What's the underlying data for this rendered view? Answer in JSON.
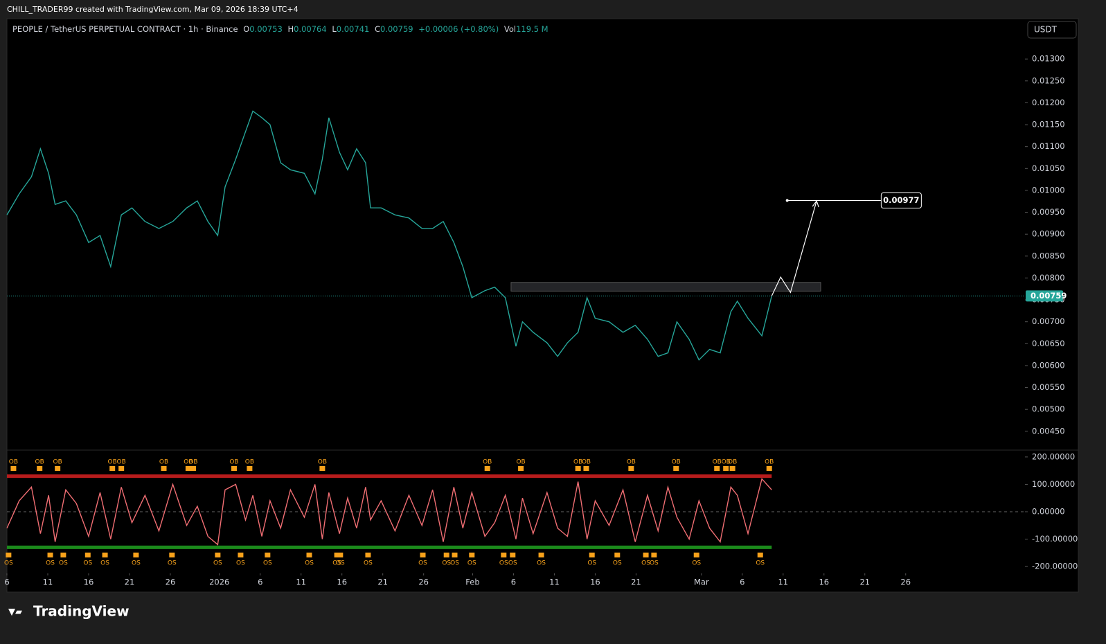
{
  "header": {
    "credit": "CHILL_TRADER99 created with TradingView.com, Mar 09, 2026 18:39 UTC+4",
    "symbol": "PEOPLE / TetherUS PERPETUAL CONTRACT · 1h · Binance",
    "o_label": "O",
    "o": "0.00753",
    "h_label": "H",
    "h": "0.00764",
    "l_label": "L",
    "l": "0.00741",
    "c_label": "C",
    "c": "0.00759",
    "change": "+0.00006 (+0.80%)",
    "vol_label": "Vol",
    "vol": "119.5 M",
    "currency": "USDT",
    "brand": "TradingView"
  },
  "chart_data": [
    {
      "type": "line",
      "name": "price",
      "x": [
        0,
        1.5,
        3,
        4.1,
        5.1,
        5.9,
        7.2,
        8.5,
        10,
        11.4,
        12.7,
        14,
        15.3,
        16.9,
        18.6,
        20.3,
        22,
        23.3,
        24.6,
        25.8,
        26.7,
        28,
        29.2,
        30.1,
        31.2,
        32.2,
        33.5,
        34.7,
        36.4,
        37.7,
        38.6,
        39.4,
        40.7,
        41.7,
        42.8,
        43.9,
        44.5,
        45.8,
        47.5,
        49.2,
        50.8,
        52.1,
        53.4,
        54.7,
        55.8,
        56.9,
        58.5,
        59.7,
        61,
        62.3,
        63.1,
        64.4,
        66.1,
        67.4,
        68.6,
        69.9,
        71,
        72,
        73.7,
        75.4,
        76.9,
        78.4,
        79.7,
        80.9,
        82,
        83.5,
        84.7,
        86,
        87.3,
        88.6,
        89.4,
        90.7,
        92.4,
        93.6
      ],
      "series": [
        {
          "name": "PEOPLE",
          "color": "#26a69a",
          "values": [
            0.00944,
            0.00992,
            0.01031,
            0.01095,
            0.01039,
            0.00968,
            0.00976,
            0.00944,
            0.00881,
            0.00897,
            0.00826,
            0.00944,
            0.0096,
            0.00929,
            0.00913,
            0.00929,
            0.0096,
            0.00976,
            0.00929,
            0.00897,
            0.01008,
            0.01071,
            0.01134,
            0.01181,
            0.01166,
            0.0115,
            0.01063,
            0.01047,
            0.01039,
            0.00992,
            0.01071,
            0.01166,
            0.01087,
            0.01047,
            0.01095,
            0.01063,
            0.0096,
            0.0096,
            0.00944,
            0.00937,
            0.00913,
            0.00913,
            0.00929,
            0.00881,
            0.00826,
            0.00755,
            0.00771,
            0.00779,
            0.00755,
            0.00644,
            0.007,
            0.00676,
            0.00652,
            0.00621,
            0.00652,
            0.00676,
            0.00755,
            0.00708,
            0.007,
            0.00676,
            0.00692,
            0.0066,
            0.00621,
            0.00629,
            0.007,
            0.0066,
            0.00613,
            0.00637,
            0.00629,
            0.00723,
            0.00747,
            0.00708,
            0.00668,
            0.00759
          ]
        }
      ],
      "xlim": [
        0,
        124.6
      ],
      "ylim": [
        0.00407,
        0.01392
      ],
      "yticks": [
        {
          "value": 0.013,
          "label": "0.01300"
        },
        {
          "value": 0.0125,
          "label": "0.01250"
        },
        {
          "value": 0.012,
          "label": "0.01200"
        },
        {
          "value": 0.0115,
          "label": "0.01150"
        },
        {
          "value": 0.011,
          "label": "0.01100"
        },
        {
          "value": 0.0105,
          "label": "0.01050"
        },
        {
          "value": 0.01,
          "label": "0.01000"
        },
        {
          "value": 0.0095,
          "label": "0.00950"
        },
        {
          "value": 0.009,
          "label": "0.00900"
        },
        {
          "value": 0.0085,
          "label": "0.00850"
        },
        {
          "value": 0.008,
          "label": "0.00800"
        },
        {
          "value": 0.0075,
          "label": "0.00750"
        },
        {
          "value": 0.007,
          "label": "0.00700"
        },
        {
          "value": 0.0065,
          "label": "0.00650"
        },
        {
          "value": 0.006,
          "label": "0.00600"
        },
        {
          "value": 0.0055,
          "label": "0.00550"
        },
        {
          "value": 0.005,
          "label": "0.00500"
        },
        {
          "value": 0.0045,
          "label": "0.00450"
        }
      ],
      "last_price": {
        "value": 0.00759,
        "label": "0.00759",
        "color": "#26a69a"
      },
      "zone": {
        "x": [
          61.7,
          99.6
        ],
        "y": [
          0.0077,
          0.0079
        ]
      },
      "projection": {
        "x": [
          93.6,
          94.7,
          95.9,
          99.1
        ],
        "y": [
          0.00759,
          0.00802,
          0.00767,
          0.00976
        ]
      },
      "target": {
        "x": [
          95.5,
          107
        ],
        "value": 0.00977,
        "label": "0.00977"
      }
    },
    {
      "type": "oscillator",
      "name": "oscillator",
      "x": [
        0,
        1.5,
        3,
        4.1,
        5.1,
        5.9,
        7.2,
        8.5,
        10,
        11.4,
        12.7,
        14,
        15.3,
        16.9,
        18.6,
        20.3,
        22,
        23.3,
        24.6,
        25.8,
        26.7,
        28,
        29.2,
        30.1,
        31.2,
        32.2,
        33.5,
        34.7,
        36.4,
        37.7,
        38.6,
        39.4,
        40.7,
        41.7,
        42.8,
        43.9,
        44.5,
        45.8,
        47.5,
        49.2,
        50.8,
        52.1,
        53.4,
        54.7,
        55.8,
        56.9,
        58.5,
        59.7,
        61,
        62.3,
        63.1,
        64.4,
        66.1,
        67.4,
        68.6,
        69.9,
        71,
        72,
        73.7,
        75.4,
        76.9,
        78.4,
        79.7,
        80.9,
        82,
        83.5,
        84.7,
        86,
        87.3,
        88.6,
        89.4,
        90.7,
        92.4,
        93.6
      ],
      "series": [
        {
          "name": "Stoch",
          "color": "#f06e73",
          "values": [
            -60,
            40,
            90,
            -80,
            60,
            -110,
            80,
            30,
            -90,
            70,
            -100,
            90,
            -40,
            60,
            -70,
            100,
            -50,
            20,
            -90,
            -120,
            80,
            100,
            -30,
            60,
            -90,
            40,
            -60,
            80,
            -20,
            100,
            -100,
            70,
            -80,
            50,
            -60,
            90,
            -30,
            40,
            -70,
            60,
            -50,
            80,
            -110,
            90,
            -60,
            70,
            -90,
            -40,
            60,
            -100,
            50,
            -80,
            70,
            -60,
            -90,
            110,
            -100,
            40,
            -50,
            80,
            -110,
            60,
            -70,
            90,
            -20,
            -100,
            40,
            -60,
            -110,
            90,
            60,
            -80,
            120,
            80
          ]
        }
      ],
      "xlim": [
        0,
        124.6
      ],
      "ylim": [
        -225,
        225
      ],
      "yticks": [
        {
          "value": 200,
          "label": "200.00000"
        },
        {
          "value": 100,
          "label": "100.00000"
        },
        {
          "value": 0,
          "label": "0.00000"
        },
        {
          "value": -100,
          "label": "-100.00000"
        },
        {
          "value": -200,
          "label": "-200.00000"
        }
      ],
      "overbought": {
        "value": 130,
        "color": "#b71c1c"
      },
      "oversold": {
        "value": -130,
        "color": "#1b8a1b"
      },
      "ob_label": "OB",
      "os_label": "OS",
      "ob_x": [
        0.8,
        4,
        6.2,
        12.9,
        14,
        19.2,
        22.2,
        22.8,
        27.8,
        29.7,
        38.6,
        58.8,
        62.9,
        69.9,
        70.9,
        76.4,
        81.9,
        86.9,
        88,
        88.8,
        93.3
      ],
      "os_x": [
        0.2,
        5.3,
        6.9,
        9.9,
        12,
        15.8,
        20.2,
        25.8,
        28.6,
        31.9,
        37,
        40.4,
        40.8,
        44.2,
        50.9,
        53.8,
        54.8,
        56.9,
        60.8,
        61.9,
        65.4,
        71.6,
        74.7,
        78.2,
        79.2,
        84.4,
        92.2
      ],
      "xticks": [
        {
          "value": 0,
          "label": "6"
        },
        {
          "value": 5,
          "label": "11"
        },
        {
          "value": 10,
          "label": "16"
        },
        {
          "value": 15,
          "label": "21"
        },
        {
          "value": 20,
          "label": "26"
        },
        {
          "value": 26,
          "label": "2026"
        },
        {
          "value": 31,
          "label": "6"
        },
        {
          "value": 36,
          "label": "11"
        },
        {
          "value": 41,
          "label": "16"
        },
        {
          "value": 46,
          "label": "21"
        },
        {
          "value": 51,
          "label": "26"
        },
        {
          "value": 57,
          "label": "Feb"
        },
        {
          "value": 62,
          "label": "6"
        },
        {
          "value": 67,
          "label": "11"
        },
        {
          "value": 72,
          "label": "16"
        },
        {
          "value": 77,
          "label": "21"
        },
        {
          "value": 85,
          "label": "Mar"
        },
        {
          "value": 90,
          "label": "6"
        },
        {
          "value": 95,
          "label": "11"
        },
        {
          "value": 100,
          "label": "16"
        },
        {
          "value": 105,
          "label": "21"
        },
        {
          "value": 110,
          "label": "26"
        }
      ]
    }
  ]
}
